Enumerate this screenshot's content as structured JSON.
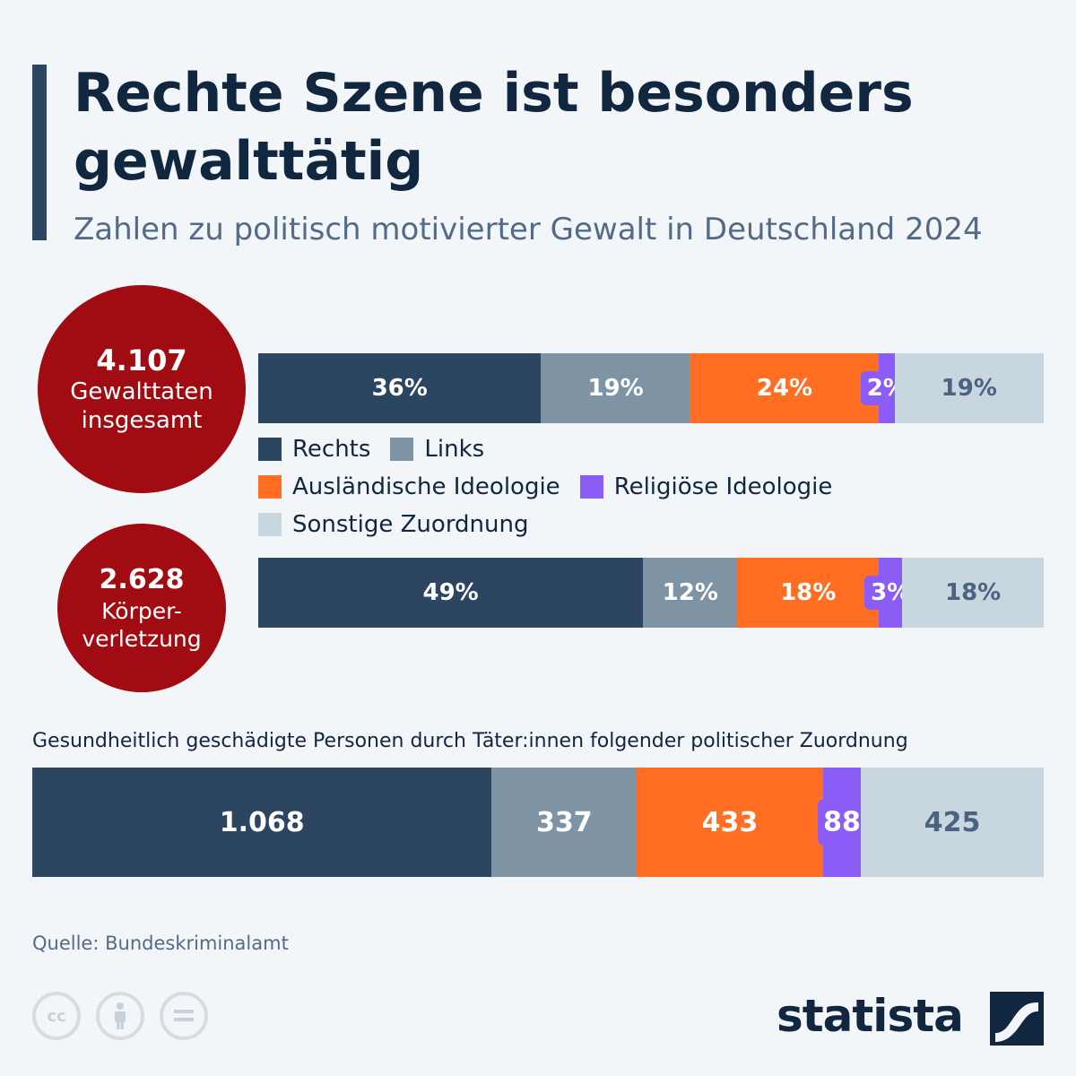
{
  "header": {
    "title": "Rechte Szene ist besonders gewalttätig",
    "subtitle": "Zahlen zu politisch motivierter Gewalt in Deutschland 2024"
  },
  "colors": {
    "rechts": "#2c4560",
    "links": "#7e94a5",
    "auslaendisch": "#ff6e22",
    "religioes": "#8b5cf6",
    "sonstige": "#c8d6df",
    "circle": "#a10c12"
  },
  "stats": {
    "total": {
      "value": "4.107",
      "label": "Gewalttaten\ninsgesamt"
    },
    "koerper": {
      "value": "2.628",
      "label": "Körper-\nverletzung"
    }
  },
  "legend": {
    "rechts": "Rechts",
    "links": "Links",
    "auslaendisch": "Ausländische Ideologie",
    "religioes": "Religiöse Ideologie",
    "sonstige": "Sonstige Zuordnung"
  },
  "section_label": "Gesundheitlich geschädigte Personen durch Täter:innen folgender politischer Zuordnung",
  "source": "Quelle: Bundeskriminalamt",
  "brand": "statista",
  "icons": [
    "cc-icon",
    "by-person-icon",
    "nd-equals-icon",
    "statista-logo-icon"
  ],
  "chart_data": [
    {
      "type": "bar",
      "orientation": "horizontal-stacked",
      "title": "Gewalttaten insgesamt",
      "categories": [
        "Rechts",
        "Links",
        "Ausländische Ideologie",
        "Religiöse Ideologie",
        "Sonstige Zuordnung"
      ],
      "values": [
        36,
        19,
        24,
        2,
        19
      ],
      "labels": [
        "36%",
        "19%",
        "24%",
        "2%",
        "19%"
      ],
      "unit": "%"
    },
    {
      "type": "bar",
      "orientation": "horizontal-stacked",
      "title": "Körperverletzung",
      "categories": [
        "Rechts",
        "Links",
        "Ausländische Ideologie",
        "Religiöse Ideologie",
        "Sonstige Zuordnung"
      ],
      "values": [
        49,
        12,
        18,
        3,
        18
      ],
      "labels": [
        "49%",
        "12%",
        "18%",
        "3%",
        "18%"
      ],
      "unit": "%"
    },
    {
      "type": "bar",
      "orientation": "horizontal-stacked",
      "title": "Gesundheitlich geschädigte Personen",
      "categories": [
        "Rechts",
        "Links",
        "Ausländische Ideologie",
        "Religiöse Ideologie",
        "Sonstige Zuordnung"
      ],
      "values": [
        1068,
        337,
        433,
        88,
        425
      ],
      "labels": [
        "1.068",
        "337",
        "433",
        "88",
        "425"
      ],
      "unit": "Personen"
    }
  ]
}
